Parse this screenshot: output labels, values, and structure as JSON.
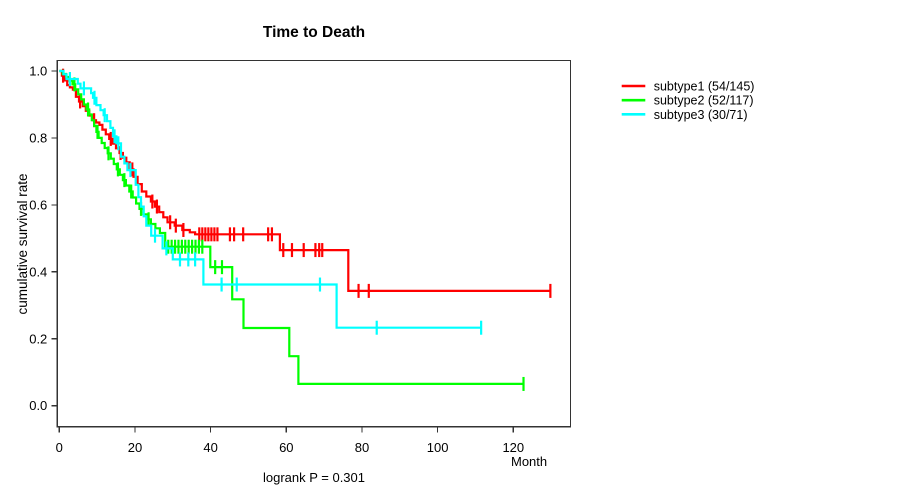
{
  "title": "Time to Death",
  "axes": {
    "x": {
      "label": "Month",
      "ticks": [
        0,
        20,
        40,
        60,
        80,
        100,
        120
      ]
    },
    "y": {
      "label": "cumulative survival rate",
      "ticks": [
        {
          "label": "1.0",
          "value": 1.0
        },
        {
          "label": "0.8",
          "value": 0.8
        },
        {
          "label": "0.6",
          "value": 0.6
        },
        {
          "label": "0.4",
          "value": 0.4
        },
        {
          "label": "0.2",
          "value": 0.2
        },
        {
          "label": "0.0",
          "value": 0.0
        }
      ]
    }
  },
  "annotation": "logrank P = 0.301",
  "legend": {
    "items": [
      {
        "label": "subtype1 (54/145)",
        "color": "#FF0000"
      },
      {
        "label": "subtype2 (52/117)",
        "color": "#00FF00"
      },
      {
        "label": "subtype3 (30/71)",
        "color": "#00FFFF"
      }
    ]
  },
  "chart_data": {
    "type": "line",
    "variant": "kaplan-meier-step",
    "title": "Time to Death",
    "xlabel": "Month",
    "ylabel": "cumulative survival rate",
    "xlim": [
      0,
      135.6
    ],
    "ylim": [
      0,
      1
    ],
    "grid": false,
    "legend_position": "outside-top-right",
    "annotation": "logrank P = 0.301",
    "series": [
      {
        "name": "subtype1 (54/145)",
        "events": 54,
        "n": 145,
        "color": "#FF0000",
        "steps": [
          [
            0,
            1
          ],
          [
            0.7,
            0.986
          ],
          [
            1.4,
            0.972
          ],
          [
            2.1,
            0.958
          ],
          [
            2.8,
            0.951
          ],
          [
            3.6,
            0.944
          ],
          [
            4.4,
            0.923
          ],
          [
            5.2,
            0.909
          ],
          [
            6.2,
            0.895
          ],
          [
            7,
            0.881
          ],
          [
            7.9,
            0.867
          ],
          [
            8.8,
            0.853
          ],
          [
            9.7,
            0.846
          ],
          [
            10.6,
            0.839
          ],
          [
            11.4,
            0.825
          ],
          [
            12.3,
            0.811
          ],
          [
            13.2,
            0.797
          ],
          [
            14.1,
            0.783
          ],
          [
            15,
            0.769
          ],
          [
            15.9,
            0.755
          ],
          [
            16.8,
            0.741
          ],
          [
            17.7,
            0.727
          ],
          [
            18.6,
            0.706
          ],
          [
            19.6,
            0.684
          ],
          [
            20.7,
            0.662
          ],
          [
            21.8,
            0.64
          ],
          [
            23,
            0.625
          ],
          [
            24.2,
            0.61
          ],
          [
            25.3,
            0.595
          ],
          [
            26.4,
            0.578
          ],
          [
            27.5,
            0.563
          ],
          [
            28.6,
            0.548
          ],
          [
            30.5,
            0.538
          ],
          [
            32.5,
            0.525
          ],
          [
            34.5,
            0.518
          ],
          [
            35.9,
            0.512
          ],
          [
            58.3,
            0.465
          ],
          [
            76.4,
            0.343
          ]
        ],
        "end_month": 129.8,
        "censor_months": [
          1,
          5.5,
          9.2,
          13.6,
          16.2,
          19.3,
          24.6,
          25.8,
          29.3,
          30.8,
          32.8,
          37,
          37.8,
          38.6,
          39.4,
          40.2,
          41,
          41.8,
          45.1,
          46.2,
          48.6,
          55.2,
          56.2,
          59.2,
          61.5,
          64.6,
          67.7,
          68.7,
          69.5,
          79.1,
          81.8,
          129.8
        ]
      },
      {
        "name": "subtype2 (52/117)",
        "events": 52,
        "n": 117,
        "color": "#00FF00",
        "steps": [
          [
            0,
            1
          ],
          [
            0.9,
            0.991
          ],
          [
            1.8,
            0.982
          ],
          [
            2.7,
            0.971
          ],
          [
            3.5,
            0.96
          ],
          [
            4.2,
            0.945
          ],
          [
            5,
            0.93
          ],
          [
            5.8,
            0.915
          ],
          [
            6.5,
            0.9
          ],
          [
            7.2,
            0.885
          ],
          [
            7.9,
            0.87
          ],
          [
            8.6,
            0.853
          ],
          [
            9.2,
            0.836
          ],
          [
            9.8,
            0.818
          ],
          [
            10.4,
            0.8
          ],
          [
            11.2,
            0.785
          ],
          [
            12,
            0.77
          ],
          [
            12.8,
            0.754
          ],
          [
            13.6,
            0.738
          ],
          [
            14.4,
            0.722
          ],
          [
            15.2,
            0.706
          ],
          [
            16,
            0.69
          ],
          [
            16.8,
            0.674
          ],
          [
            17.6,
            0.658
          ],
          [
            18.5,
            0.64
          ],
          [
            19.4,
            0.622
          ],
          [
            20.3,
            0.604
          ],
          [
            21.2,
            0.588
          ],
          [
            22.2,
            0.572
          ],
          [
            23.2,
            0.557
          ],
          [
            24.2,
            0.543
          ],
          [
            25.4,
            0.53
          ],
          [
            26.6,
            0.516
          ],
          [
            28,
            0.475
          ],
          [
            39.9,
            0.414
          ],
          [
            45.7,
            0.318
          ],
          [
            48.7,
            0.232
          ],
          [
            60.8,
            0.148
          ],
          [
            63.2,
            0.065
          ]
        ],
        "end_month": 122.7,
        "censor_months": [
          4,
          7.6,
          10.1,
          13,
          15.5,
          17.2,
          19,
          21.6,
          23.6,
          28.8,
          29.7,
          30.6,
          31.5,
          32.4,
          33.3,
          34.2,
          35.1,
          36,
          36.9,
          37.8,
          41.2,
          43,
          122.7
        ]
      },
      {
        "name": "subtype3 (30/71)",
        "events": 30,
        "n": 71,
        "color": "#00FFFF",
        "steps": [
          [
            0,
            1
          ],
          [
            1.1,
            0.99
          ],
          [
            1.9,
            0.976
          ],
          [
            4.9,
            0.962
          ],
          [
            5.6,
            0.948
          ],
          [
            8.4,
            0.934
          ],
          [
            8.9,
            0.92
          ],
          [
            9.8,
            0.898
          ],
          [
            10.9,
            0.883
          ],
          [
            11.7,
            0.868
          ],
          [
            12.6,
            0.85
          ],
          [
            13.5,
            0.83
          ],
          [
            14.2,
            0.805
          ],
          [
            15.1,
            0.784
          ],
          [
            16.3,
            0.744
          ],
          [
            17.2,
            0.724
          ],
          [
            18,
            0.704
          ],
          [
            20.2,
            0.66
          ],
          [
            20.9,
            0.623
          ],
          [
            21.6,
            0.595
          ],
          [
            22.3,
            0.566
          ],
          [
            23,
            0.538
          ],
          [
            24.3,
            0.508
          ],
          [
            27.3,
            0.47
          ],
          [
            30,
            0.437
          ],
          [
            38.1,
            0.362
          ],
          [
            73.3,
            0.233
          ]
        ],
        "end_month": 111.5,
        "censor_months": [
          2.8,
          6.5,
          9.3,
          12,
          14.6,
          15.6,
          18.8,
          25.3,
          28.3,
          31.9,
          34.1,
          35.9,
          42.9,
          46.9,
          68.9,
          83.9,
          111.5
        ]
      }
    ]
  }
}
